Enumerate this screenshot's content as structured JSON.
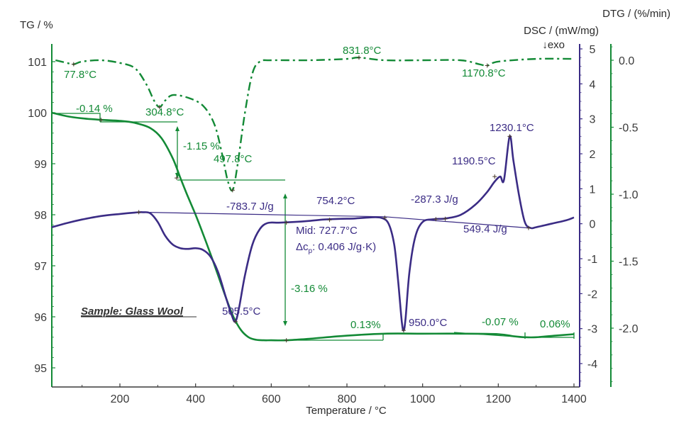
{
  "chart_data": {
    "type": "line",
    "title": "",
    "sample_label": "Sample: Glass Wool",
    "xlabel": "Temperature / °C",
    "xlim": [
      20,
      1400
    ],
    "xticks": [
      "200",
      "400",
      "600",
      "800",
      "1000",
      "1200",
      "1400"
    ],
    "xtick_values": [
      200,
      400,
      600,
      800,
      1000,
      1200,
      1400
    ],
    "axes": {
      "tg": {
        "label": "TG / %",
        "lim": [
          94.6,
          101.2
        ],
        "ticks": [
          "101",
          "100",
          "99",
          "98",
          "97",
          "96",
          "95"
        ],
        "tick_values": [
          101,
          100,
          99,
          98,
          97,
          96,
          95
        ],
        "color": "#138a36"
      },
      "dsc": {
        "label": "DSC / (mW/mg)",
        "sublabel": "↓exo",
        "lim": [
          -4.5,
          5.2
        ],
        "ticks": [
          "5",
          "4",
          "3",
          "2",
          "1",
          "0",
          "-1",
          "-2",
          "-3",
          "-4"
        ],
        "tick_values": [
          5,
          4,
          3,
          2,
          1,
          0,
          -1,
          -2,
          -3,
          -4
        ],
        "color": "#3b2c85"
      },
      "dtg": {
        "label": "DTG / (%/min)",
        "lim": [
          -2.45,
          0.12
        ],
        "ticks": [
          "0.0",
          "-0.5",
          "-1.0",
          "-1.5",
          "-2.0"
        ],
        "tick_values": [
          0.0,
          -0.5,
          -1.0,
          -1.5,
          -2.0
        ],
        "color": "#138a36"
      }
    },
    "series": [
      {
        "name": "TG",
        "axis": "tg",
        "style": "solid",
        "color": "#138a36",
        "x": [
          20,
          60,
          100,
          150,
          200,
          240,
          280,
          310,
          340,
          360,
          380,
          400,
          420,
          440,
          460,
          480,
          500,
          520,
          540,
          560,
          580,
          600,
          640,
          700,
          800,
          900,
          1000,
          1100,
          1200,
          1240,
          1270,
          1300,
          1350,
          1400
        ],
        "y": [
          100.0,
          99.93,
          99.89,
          99.86,
          99.84,
          99.8,
          99.7,
          99.5,
          99.1,
          98.72,
          98.35,
          98.0,
          97.62,
          97.22,
          96.8,
          96.38,
          96.0,
          95.74,
          95.6,
          95.55,
          95.54,
          95.54,
          95.54,
          95.57,
          95.63,
          95.67,
          95.67,
          95.67,
          95.66,
          95.62,
          95.6,
          95.6,
          95.63,
          95.66
        ]
      },
      {
        "name": "DSC",
        "axis": "dsc",
        "style": "solid",
        "color": "#3b2c85",
        "x": [
          20,
          60,
          100,
          150,
          200,
          240,
          260,
          280,
          300,
          320,
          340,
          360,
          380,
          400,
          420,
          440,
          460,
          480,
          495,
          505,
          515,
          530,
          550,
          570,
          590,
          620,
          660,
          700,
          740,
          780,
          820,
          860,
          890,
          910,
          925,
          935,
          945,
          950,
          955,
          965,
          980,
          1000,
          1030,
          1060,
          1100,
          1140,
          1170,
          1190,
          1205,
          1215,
          1230,
          1240,
          1255,
          1270,
          1285,
          1300,
          1340,
          1380,
          1400
        ],
        "y": [
          -0.1,
          0.02,
          0.12,
          0.22,
          0.28,
          0.32,
          0.33,
          0.3,
          0.05,
          -0.35,
          -0.6,
          -0.7,
          -0.72,
          -0.7,
          -0.75,
          -0.95,
          -1.4,
          -2.1,
          -2.6,
          -2.8,
          -2.4,
          -1.5,
          -0.6,
          -0.15,
          0.02,
          0.03,
          0.05,
          0.08,
          0.12,
          0.14,
          0.15,
          0.18,
          0.17,
          0.0,
          -0.6,
          -1.6,
          -2.8,
          -3.05,
          -2.7,
          -1.4,
          -0.4,
          0.05,
          0.13,
          0.15,
          0.25,
          0.55,
          0.9,
          1.2,
          1.35,
          1.25,
          2.5,
          1.8,
          0.8,
          0.05,
          -0.12,
          -0.1,
          0.0,
          0.1,
          0.18
        ]
      },
      {
        "name": "DSC baseline",
        "axis": "dsc",
        "style": "thin",
        "color": "#3b2c85",
        "x": [
          250,
          640,
          900,
          1280
        ],
        "y": [
          0.33,
          0.25,
          0.2,
          -0.12
        ]
      },
      {
        "name": "DTG",
        "axis": "dtg",
        "style": "dashdot",
        "color": "#138a36",
        "x": [
          30,
          60,
          77.8,
          100,
          150,
          200,
          240,
          270,
          290,
          304.8,
          320,
          340,
          380,
          420,
          450,
          470,
          485,
          497.8,
          510,
          530,
          550,
          570,
          600,
          700,
          800,
          831.8,
          900,
          1000,
          1100,
          1150,
          1170.8,
          1200,
          1300,
          1400
        ],
        "y": [
          0.0,
          -0.02,
          -0.03,
          -0.01,
          0.0,
          -0.02,
          -0.06,
          -0.18,
          -0.3,
          -0.35,
          -0.3,
          -0.26,
          -0.28,
          -0.34,
          -0.48,
          -0.7,
          -0.9,
          -0.97,
          -0.8,
          -0.4,
          -0.1,
          -0.01,
          0.0,
          0.0,
          0.01,
          0.02,
          0.0,
          0.0,
          0.0,
          -0.03,
          -0.04,
          -0.01,
          0.01,
          0.01
        ]
      }
    ],
    "annotations": [
      {
        "text": "77.8°C",
        "series": "DTG",
        "type": "peak"
      },
      {
        "text": "304.8°C",
        "series": "DTG",
        "type": "peak"
      },
      {
        "text": "497.8°C",
        "series": "DTG",
        "type": "peak"
      },
      {
        "text": "831.8°C",
        "series": "DTG",
        "type": "peak"
      },
      {
        "text": "1170.8°C",
        "series": "DTG",
        "type": "peak"
      },
      {
        "text": "-0.14 %",
        "series": "TG",
        "type": "mass-change"
      },
      {
        "text": "-1.15 %",
        "series": "TG",
        "type": "mass-change"
      },
      {
        "text": "-3.16 %",
        "series": "TG",
        "type": "mass-change"
      },
      {
        "text": "0.13%",
        "series": "TG",
        "type": "mass-change"
      },
      {
        "text": "-0.07 %",
        "series": "TG",
        "type": "mass-change"
      },
      {
        "text": "0.06%",
        "series": "TG",
        "type": "mass-change"
      },
      {
        "text": "-783.7 J/g",
        "series": "DSC",
        "type": "area"
      },
      {
        "text": "754.2°C",
        "series": "DSC",
        "type": "peak"
      },
      {
        "text": "-287.3 J/g",
        "series": "DSC",
        "type": "area"
      },
      {
        "text": "1190.5°C",
        "series": "DSC",
        "type": "peak"
      },
      {
        "text": "1230.1°C",
        "series": "DSC",
        "type": "peak"
      },
      {
        "text": "549.4 J/g",
        "series": "DSC",
        "type": "area"
      },
      {
        "text": "505.5°C",
        "series": "DSC",
        "type": "peak"
      },
      {
        "text": "950.0°C",
        "series": "DSC",
        "type": "peak"
      },
      {
        "text": "Mid: 727.7°C",
        "series": "DSC",
        "type": "glass-transition"
      },
      {
        "text": "Δc",
        "sub": "p",
        "suffix": ": 0.406 J/g·K)",
        "series": "DSC",
        "type": "glass-transition"
      }
    ]
  }
}
